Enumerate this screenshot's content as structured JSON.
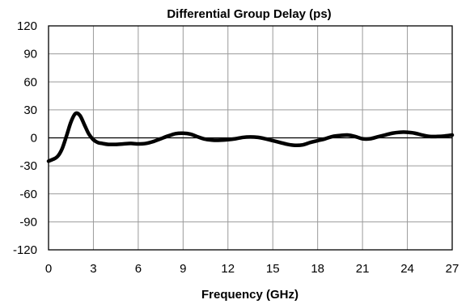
{
  "chart_data": {
    "type": "line",
    "title": "Differential Group Delay (ps)",
    "xlabel": "Frequency (GHz)",
    "ylabel": "",
    "xlim": [
      0,
      27
    ],
    "ylim": [
      -120,
      120
    ],
    "x_ticks": [
      0,
      3,
      6,
      9,
      12,
      15,
      18,
      21,
      24,
      27
    ],
    "y_ticks": [
      120,
      90,
      60,
      30,
      0,
      -30,
      -60,
      -90,
      -120
    ],
    "grid": true,
    "legend": "none",
    "color": "#000000",
    "series": [
      {
        "x": [
          0,
          0.3,
          0.6,
          0.9,
          1.2,
          1.5,
          1.8,
          2.1,
          2.4,
          2.7,
          3.0,
          3.3,
          3.6,
          4.0,
          4.5,
          5.0,
          5.5,
          6.0,
          6.5,
          7.0,
          7.5,
          8.0,
          8.5,
          9.0,
          9.5,
          10.0,
          10.5,
          11.0,
          11.5,
          12.0,
          12.5,
          13.0,
          13.5,
          14.0,
          14.5,
          15.0,
          15.5,
          16.0,
          16.5,
          17.0,
          17.5,
          18.0,
          18.5,
          19.0,
          19.5,
          20.0,
          20.5,
          21.0,
          21.5,
          22.0,
          22.5,
          23.0,
          23.5,
          24.0,
          24.5,
          25.0,
          25.5,
          26.0,
          26.5,
          27.0
        ],
        "values": [
          -25,
          -23,
          -20,
          -12,
          2,
          17,
          26,
          24,
          14,
          4,
          -2,
          -5,
          -6,
          -7,
          -7,
          -6.5,
          -6,
          -6.5,
          -6,
          -4,
          -1,
          2,
          4.5,
          5,
          4,
          1,
          -1.5,
          -2.5,
          -2.5,
          -2,
          -1,
          0.5,
          1,
          0.5,
          -1,
          -3,
          -5,
          -7,
          -8,
          -7.5,
          -5,
          -3,
          -1,
          1.5,
          2.5,
          3,
          1.5,
          -1,
          -1,
          1,
          3,
          5,
          6,
          6,
          5,
          3,
          1.5,
          1.5,
          2,
          3
        ]
      }
    ]
  }
}
